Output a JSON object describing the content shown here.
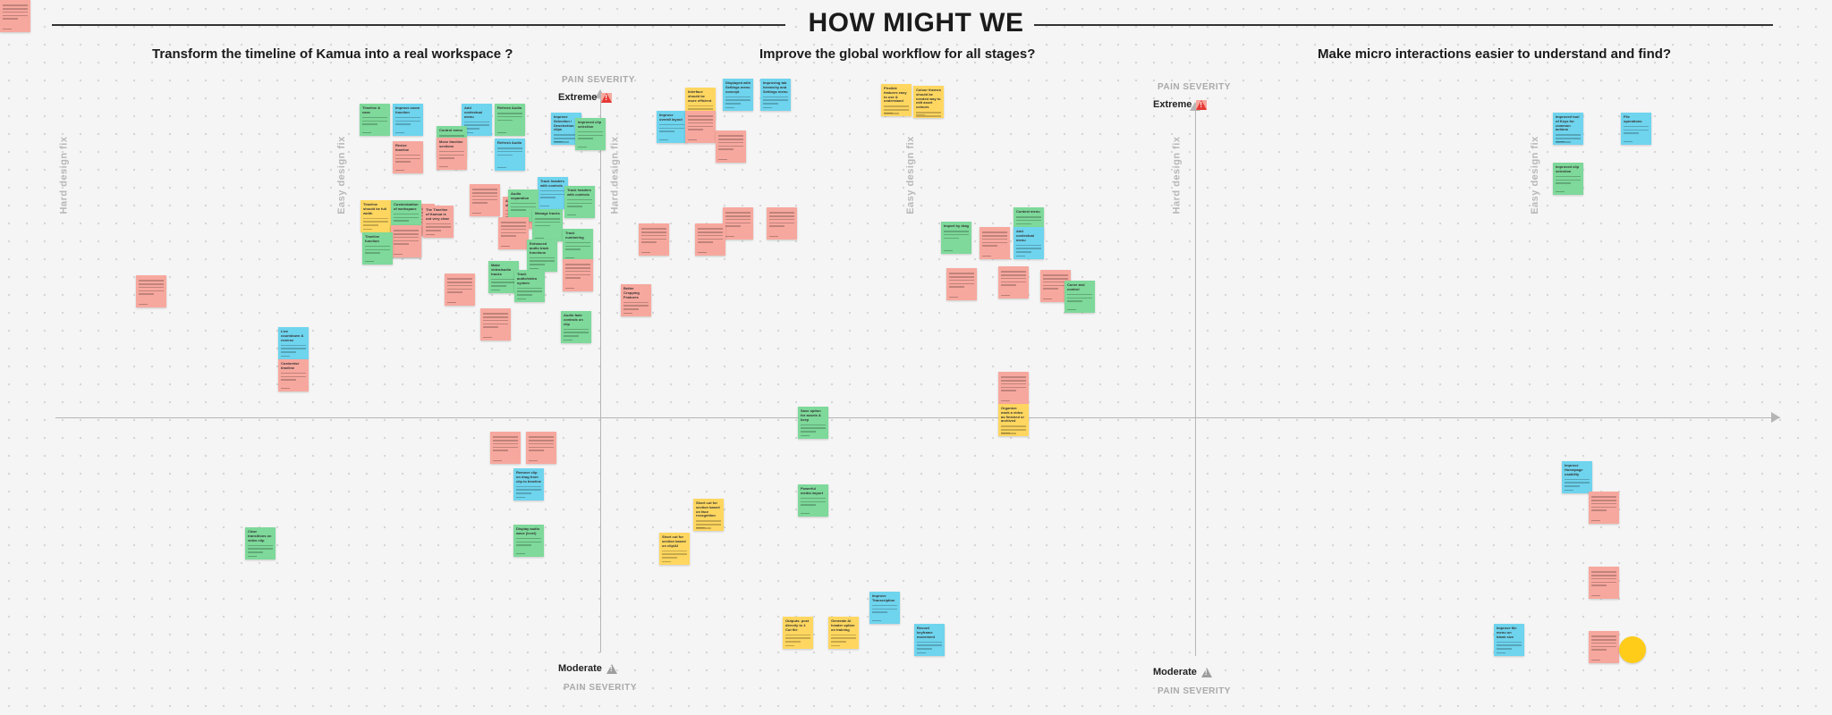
{
  "title": "HOW MIGHT WE",
  "questions": [
    "Transform the timeline of Kamua into a real workspace ?",
    "Improve the global workflow for all stages?",
    "Make micro interactions easier to understand and find?"
  ],
  "axes": {
    "pain_severity": "PAIN SEVERITY",
    "extreme": "Extreme",
    "moderate": "Moderate",
    "hard_fix": "Hard design fix",
    "easy_fix": "Easy design fix"
  },
  "colors": {
    "green": "#7ed99a",
    "blue": "#6fd4ee",
    "red": "#f7a89e",
    "yellow": "#ffd760",
    "dot": "#ffcc1a"
  },
  "notes": [
    {
      "c": "green",
      "t": "Timeline & ease"
    },
    {
      "c": "blue",
      "t": "Improve zoom function"
    },
    {
      "c": "blue",
      "t": "Add contextual menu"
    },
    {
      "c": "green",
      "t": "Refresh Audio"
    },
    {
      "c": "green",
      "t": "Control menu"
    },
    {
      "c": "red",
      "t": "Resize timeline"
    },
    {
      "c": "blue",
      "t": "Refresh Audio"
    },
    {
      "c": "red",
      "t": "Move timeline sections"
    },
    {
      "c": "blue",
      "t": "Improve Selection / Deselection clips"
    },
    {
      "c": "green",
      "t": "Improved clip selection"
    },
    {
      "c": "red",
      "t": ""
    },
    {
      "c": "red",
      "t": "Add keyboard shortcuts"
    },
    {
      "c": "blue",
      "t": "Track headers with controls"
    },
    {
      "c": "green",
      "t": "Track headers with controls"
    },
    {
      "c": "green",
      "t": "Audio separation"
    },
    {
      "c": "red",
      "t": ""
    },
    {
      "c": "green",
      "t": "Manage tracks"
    },
    {
      "c": "yellow",
      "t": "Timeline should be full width"
    },
    {
      "c": "green",
      "t": "Customization of workspace"
    },
    {
      "c": "red",
      "t": "The Timeline of Kamua is not very clear"
    },
    {
      "c": "blue",
      "t": "Customization of workspace"
    },
    {
      "c": "red",
      "t": ""
    },
    {
      "c": "green",
      "t": "Timeline function"
    },
    {
      "c": "red",
      "t": ""
    },
    {
      "c": "green",
      "t": "Track numbering"
    },
    {
      "c": "green",
      "t": "Enhanced audio track functions"
    },
    {
      "c": "green",
      "t": "Make video/audio tracks"
    },
    {
      "c": "green",
      "t": "Track audio/video system"
    },
    {
      "c": "red",
      "t": ""
    },
    {
      "c": "red",
      "t": ""
    },
    {
      "c": "green",
      "t": "Audio fade controls on clip"
    },
    {
      "c": "red",
      "t": ""
    },
    {
      "c": "red",
      "t": ""
    },
    {
      "c": "blue",
      "t": "Live countdown & reverse"
    },
    {
      "c": "red",
      "t": "Customise timeline"
    },
    {
      "c": "yellow",
      "t": "Interface should be more efficient"
    },
    {
      "c": "blue",
      "t": "Displayed with Settings menu concept"
    },
    {
      "c": "blue",
      "t": "Improving tab hierarchy and Settings menu"
    },
    {
      "c": "blue",
      "t": "Improve overall layout"
    },
    {
      "c": "red",
      "t": ""
    },
    {
      "c": "red",
      "t": ""
    },
    {
      "c": "red",
      "t": ""
    },
    {
      "c": "red",
      "t": ""
    },
    {
      "c": "red",
      "t": "Better Cropping Features"
    },
    {
      "c": "red",
      "t": ""
    },
    {
      "c": "red",
      "t": ""
    },
    {
      "c": "yellow",
      "t": "Flexible features easy to use & understand"
    },
    {
      "c": "yellow",
      "t": "Colour themes should be needed way to edit asset colours"
    },
    {
      "c": "green",
      "t": "Import by drag"
    },
    {
      "c": "red",
      "t": ""
    },
    {
      "c": "green",
      "t": "Context menu"
    },
    {
      "c": "blue",
      "t": "Add contextual menu"
    },
    {
      "c": "red",
      "t": ""
    },
    {
      "c": "red",
      "t": ""
    },
    {
      "c": "red",
      "t": ""
    },
    {
      "c": "green",
      "t": "Curve and control"
    },
    {
      "c": "red",
      "t": ""
    },
    {
      "c": "yellow",
      "t": "Organize: mark a video as finished or archived"
    },
    {
      "c": "green",
      "t": "Save option for assets & keep"
    },
    {
      "c": "green",
      "t": "Powerful media import"
    },
    {
      "c": "red",
      "t": ""
    },
    {
      "c": "red",
      "t": ""
    },
    {
      "c": "blue",
      "t": "Remove clip on drag from clip to timeline"
    },
    {
      "c": "green",
      "t": "Display audio wave (level)"
    },
    {
      "c": "green",
      "t": "Clear transitions on video clip"
    },
    {
      "c": "yellow",
      "t": "Short cut for section based on clip/AI"
    },
    {
      "c": "yellow",
      "t": "Short cut for section based on face recognition"
    },
    {
      "c": "yellow",
      "t": "Outputs: post directly to 4 Cut file"
    },
    {
      "c": "yellow",
      "t": "Generate AI header option on training"
    },
    {
      "c": "blue",
      "t": "Improve Transcription"
    },
    {
      "c": "blue",
      "t": "Record keyframe movement"
    },
    {
      "c": "blue",
      "t": "Improved tool of Keys for common actions"
    },
    {
      "c": "blue",
      "t": "File operations"
    },
    {
      "c": "green",
      "t": "Improved clip selection"
    },
    {
      "c": "blue",
      "t": "Improve Homepage usability"
    },
    {
      "c": "red",
      "t": ""
    },
    {
      "c": "red",
      "t": ""
    },
    {
      "c": "blue",
      "t": "Improve file menu on blank size"
    },
    {
      "c": "red",
      "t": ""
    },
    {
      "c": "red",
      "t": ""
    }
  ],
  "dot_note": ""
}
